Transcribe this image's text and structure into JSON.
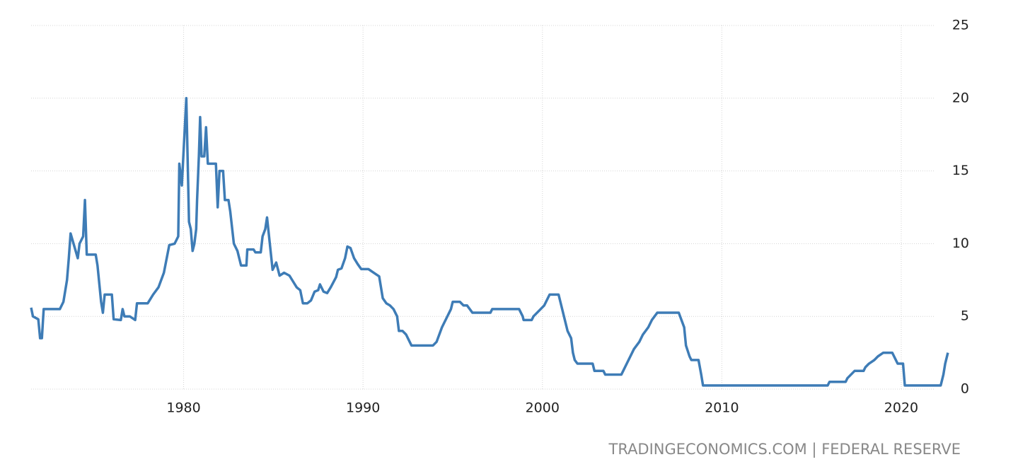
{
  "chart_data": {
    "type": "line",
    "source": "TRADINGECONOMICS.COM | FEDERAL RESERVE",
    "color": "#3e7cb6",
    "grid": true,
    "xlim": [
      1971.5,
      2022.8
    ],
    "ylim": [
      0,
      25
    ],
    "xticks": [
      1980,
      1990,
      2000,
      2010,
      2020
    ],
    "yticks": [
      0,
      5,
      10,
      15,
      20,
      25
    ],
    "x": [
      1971.5,
      1971.6,
      1971.9,
      1972.0,
      1972.1,
      1972.2,
      1973.1,
      1973.3,
      1973.5,
      1973.6,
      1973.7,
      1974.1,
      1974.2,
      1974.4,
      1974.5,
      1974.6,
      1974.7,
      1975.1,
      1975.2,
      1975.3,
      1975.4,
      1975.5,
      1975.6,
      1976.0,
      1976.1,
      1976.5,
      1976.6,
      1976.7,
      1977.0,
      1977.3,
      1977.4,
      1977.5,
      1978.0,
      1978.3,
      1978.6,
      1978.9,
      1979.2,
      1979.5,
      1979.7,
      1979.76,
      1979.9,
      1980.15,
      1980.3,
      1980.4,
      1980.5,
      1980.6,
      1980.7,
      1980.75,
      1980.85,
      1980.92,
      1981.0,
      1981.15,
      1981.25,
      1981.35,
      1981.8,
      1981.9,
      1982.0,
      1982.2,
      1982.3,
      1982.5,
      1982.6,
      1982.8,
      1983.0,
      1983.2,
      1983.5,
      1983.55,
      1983.9,
      1984.0,
      1984.3,
      1984.4,
      1984.55,
      1984.65,
      1984.96,
      1985.16,
      1985.35,
      1985.6,
      1985.9,
      1986.1,
      1986.3,
      1986.5,
      1986.65,
      1986.9,
      1987.1,
      1987.3,
      1987.5,
      1987.6,
      1987.8,
      1988.0,
      1988.2,
      1988.5,
      1988.6,
      1988.8,
      1989.0,
      1989.13,
      1989.3,
      1989.5,
      1989.7,
      1989.9,
      1990.3,
      1990.6,
      1990.9,
      1991.0,
      1991.1,
      1991.3,
      1991.5,
      1991.7,
      1991.9,
      1992.0,
      1992.2,
      1992.4,
      1992.6,
      1992.7,
      1993.9,
      1994.1,
      1994.4,
      1994.6,
      1994.9,
      1995.0,
      1995.4,
      1995.6,
      1995.8,
      1996.1,
      1997.1,
      1997.2,
      1998.7,
      1998.9,
      1998.95,
      1999.4,
      1999.5,
      1999.7,
      1999.9,
      2000.1,
      2000.2,
      2000.4,
      2000.9,
      2001.0,
      2001.2,
      2001.4,
      2001.6,
      2001.7,
      2001.8,
      2001.95,
      2002.8,
      2002.9,
      2003.4,
      2003.5,
      2004.4,
      2004.5,
      2004.7,
      2004.9,
      2005.1,
      2005.4,
      2005.6,
      2005.9,
      2006.1,
      2006.4,
      2007.6,
      2007.75,
      2007.9,
      2008.0,
      2008.2,
      2008.3,
      2008.7,
      2008.85,
      2008.95,
      2015.9,
      2016.0,
      2016.9,
      2017.0,
      2017.2,
      2017.4,
      2017.9,
      2018.0,
      2018.2,
      2018.5,
      2018.7,
      2019.0,
      2019.5,
      2019.6,
      2019.8,
      2020.1,
      2020.2,
      2022.2,
      2022.25,
      2022.35,
      2022.45,
      2022.6
    ],
    "values": [
      5.6,
      5.0,
      4.8,
      3.5,
      3.5,
      5.5,
      5.5,
      6.0,
      7.5,
      9.0,
      10.7,
      9.0,
      10.0,
      10.5,
      13.0,
      9.25,
      9.25,
      9.25,
      8.5,
      7.25,
      6.0,
      5.25,
      6.5,
      6.5,
      4.8,
      4.75,
      5.5,
      5.0,
      5.0,
      4.75,
      5.9,
      5.9,
      5.9,
      6.5,
      7.0,
      8.0,
      9.9,
      10.0,
      10.5,
      15.5,
      14.0,
      20.0,
      11.5,
      11.0,
      9.5,
      10.0,
      11.0,
      13.0,
      16.0,
      18.7,
      16.0,
      16.0,
      18.0,
      15.5,
      15.5,
      12.5,
      15.0,
      15.0,
      13.0,
      13.0,
      12.2,
      10.0,
      9.5,
      8.5,
      8.5,
      9.6,
      9.6,
      9.4,
      9.4,
      10.5,
      11.0,
      11.8,
      8.2,
      8.7,
      7.8,
      8.0,
      7.8,
      7.4,
      7.0,
      6.8,
      5.9,
      5.9,
      6.1,
      6.7,
      6.8,
      7.2,
      6.7,
      6.6,
      7.0,
      7.7,
      8.2,
      8.3,
      9.0,
      9.8,
      9.7,
      9.0,
      8.6,
      8.25,
      8.25,
      8.0,
      7.75,
      7.0,
      6.25,
      5.9,
      5.75,
      5.5,
      5.0,
      4.0,
      4.0,
      3.75,
      3.25,
      3.0,
      3.0,
      3.25,
      4.25,
      4.75,
      5.5,
      6.0,
      6.0,
      5.75,
      5.75,
      5.25,
      5.25,
      5.5,
      5.5,
      5.0,
      4.75,
      4.75,
      5.0,
      5.25,
      5.5,
      5.75,
      6.0,
      6.5,
      6.5,
      6.0,
      5.0,
      4.0,
      3.5,
      2.5,
      2.0,
      1.75,
      1.75,
      1.25,
      1.25,
      1.0,
      1.0,
      1.25,
      1.75,
      2.25,
      2.75,
      3.25,
      3.75,
      4.25,
      4.75,
      5.25,
      5.25,
      4.75,
      4.25,
      3.0,
      2.25,
      2.0,
      2.0,
      1.0,
      0.25,
      0.25,
      0.5,
      0.5,
      0.75,
      1.0,
      1.25,
      1.25,
      1.5,
      1.75,
      2.0,
      2.25,
      2.5,
      2.5,
      2.25,
      1.75,
      1.75,
      0.25,
      0.25,
      0.5,
      1.0,
      1.75,
      2.5
    ]
  }
}
